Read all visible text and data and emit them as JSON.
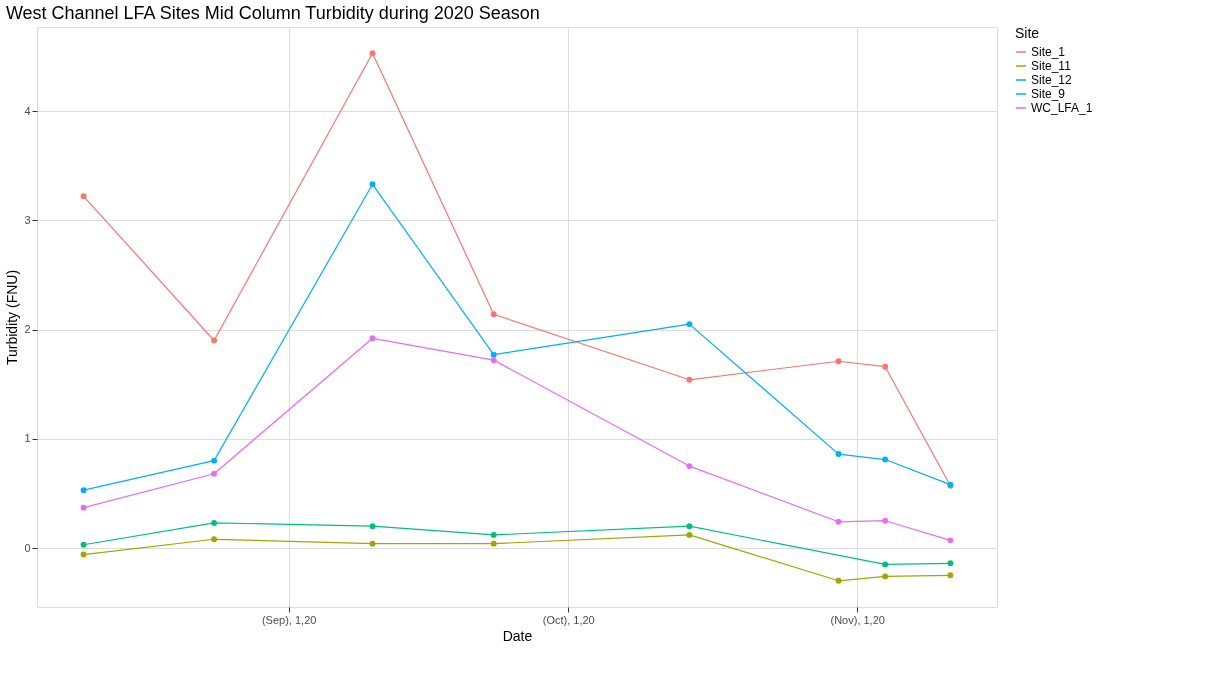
{
  "chart_data": {
    "type": "line",
    "title": "West Channel LFA Sites Mid Column Turbidity during 2020 Season",
    "xlabel": "Date",
    "ylabel": "Turbidity (FNU)",
    "legend_title": "Site",
    "x": [
      "2020-08-10",
      "2020-08-24",
      "2020-09-10",
      "2020-09-23",
      "2020-10-14",
      "2020-10-30",
      "2020-11-04",
      "2020-11-11"
    ],
    "series": [
      {
        "name": "Site_1",
        "color": "#f8766d",
        "values": [
          3.22,
          1.9,
          4.53,
          2.14,
          1.54,
          1.71,
          1.66,
          0.57
        ]
      },
      {
        "name": "Site_11",
        "color": "#a3a500",
        "values": [
          -0.06,
          0.08,
          0.04,
          0.04,
          0.12,
          -0.3,
          -0.26,
          -0.25
        ]
      },
      {
        "name": "Site_12",
        "color": "#00bf7d",
        "x": [
          "2020-08-10",
          "2020-08-24",
          "2020-09-10",
          "2020-09-23",
          "2020-10-14",
          "2020-11-04",
          "2020-11-11"
        ],
        "values": [
          0.03,
          0.23,
          0.2,
          0.12,
          0.2,
          -0.15,
          -0.14
        ]
      },
      {
        "name": "Site_9",
        "color": "#00b0f6",
        "values": [
          0.53,
          0.8,
          3.33,
          1.77,
          2.05,
          0.86,
          0.81,
          0.58
        ]
      },
      {
        "name": "WC_LFA_1",
        "color": "#e76bf3",
        "values": [
          0.37,
          0.68,
          1.92,
          1.72,
          0.75,
          0.24,
          0.25,
          0.07
        ]
      }
    ],
    "xlim": [
      "2020-08-05",
      "2020-11-16"
    ],
    "xticks": [
      {
        "value": "2020-09-01",
        "label": "(Sep), 1,20"
      },
      {
        "value": "2020-10-01",
        "label": "(Oct), 1,20"
      },
      {
        "value": "2020-11-01",
        "label": "(Nov), 1,20"
      }
    ],
    "ylim": [
      -0.54,
      4.77
    ],
    "yticks": [
      0,
      1,
      2,
      3,
      4
    ],
    "grid": true,
    "legend": "right",
    "marker": "circle",
    "line_style": "solid"
  }
}
